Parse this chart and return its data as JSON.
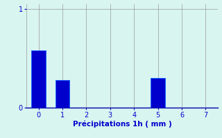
{
  "categories": [
    0,
    1,
    2,
    3,
    4,
    5,
    6,
    7
  ],
  "values": [
    0.58,
    0.28,
    0,
    0,
    0,
    0.3,
    0,
    0
  ],
  "bar_color": "#0000cc",
  "bar_edge_color": "#1a66ff",
  "background_color": "#d8f5f0",
  "grid_color": "#999999",
  "xlabel": "Précipitations 1h ( mm )",
  "xlabel_color": "#0000cc",
  "tick_color": "#0000cc",
  "ylim": [
    0,
    1.05
  ],
  "xlim": [
    -0.5,
    7.5
  ],
  "yticks": [
    0,
    1
  ],
  "xticks": [
    0,
    1,
    2,
    3,
    4,
    5,
    6,
    7
  ],
  "bar_width": 0.6
}
